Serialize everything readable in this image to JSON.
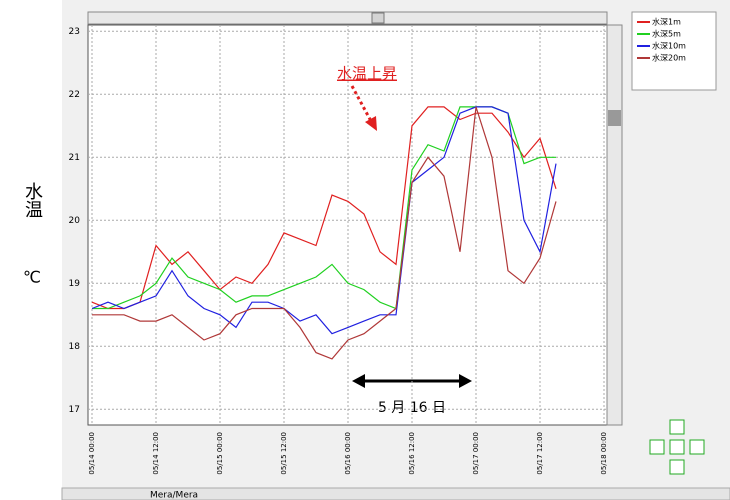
{
  "chart_data": {
    "type": "line",
    "ylabel": "水温",
    "yunit": "℃",
    "annotations": [
      "水温上昇",
      "5 月 16 日"
    ],
    "x": [
      "05/14 00:00",
      "05/14 03:00",
      "05/14 06:00",
      "05/14 09:00",
      "05/14 12:00",
      "05/14 15:00",
      "05/14 18:00",
      "05/14 21:00",
      "05/15 00:00",
      "05/15 03:00",
      "05/15 06:00",
      "05/15 09:00",
      "05/15 12:00",
      "05/15 15:00",
      "05/15 18:00",
      "05/15 21:00",
      "05/16 00:00",
      "05/16 03:00",
      "05/16 06:00",
      "05/16 09:00",
      "05/16 12:00",
      "05/16 15:00",
      "05/16 18:00",
      "05/16 21:00",
      "05/17 00:00",
      "05/17 03:00",
      "05/17 06:00",
      "05/17 09:00",
      "05/17 12:00",
      "05/17 15:00"
    ],
    "series": [
      {
        "name": "水深1m",
        "color": "#e02020",
        "values": [
          18.7,
          18.6,
          18.6,
          18.7,
          19.6,
          19.3,
          19.5,
          19.2,
          18.9,
          19.1,
          19.0,
          19.3,
          19.8,
          19.7,
          19.6,
          20.4,
          20.3,
          20.1,
          19.5,
          19.3,
          21.5,
          21.8,
          21.8,
          21.6,
          21.7,
          21.7,
          21.4,
          21.0,
          21.3,
          20.5
        ]
      },
      {
        "name": "水深5m",
        "color": "#20d020",
        "values": [
          18.6,
          18.6,
          18.7,
          18.8,
          19.0,
          19.4,
          19.1,
          19.0,
          18.9,
          18.7,
          18.8,
          18.8,
          18.9,
          19.0,
          19.1,
          19.3,
          19.0,
          18.9,
          18.7,
          18.6,
          20.8,
          21.2,
          21.1,
          21.8,
          21.8,
          21.8,
          21.7,
          20.9,
          21.0,
          21.0
        ]
      },
      {
        "name": "水深10m",
        "color": "#2020e0",
        "values": [
          18.6,
          18.7,
          18.6,
          18.7,
          18.8,
          19.2,
          18.8,
          18.6,
          18.5,
          18.3,
          18.7,
          18.7,
          18.6,
          18.4,
          18.5,
          18.2,
          18.3,
          18.4,
          18.5,
          18.5,
          20.6,
          20.8,
          21.0,
          21.7,
          21.8,
          21.8,
          21.7,
          20.0,
          19.5,
          20.9
        ]
      },
      {
        "name": "水深20m",
        "color": "#b03838",
        "values": [
          18.5,
          18.5,
          18.5,
          18.4,
          18.4,
          18.5,
          18.3,
          18.1,
          18.2,
          18.5,
          18.6,
          18.6,
          18.6,
          18.3,
          17.9,
          17.8,
          18.1,
          18.2,
          18.4,
          18.6,
          20.6,
          21.0,
          20.7,
          19.5,
          21.8,
          21.0,
          19.2,
          19.0,
          19.4,
          20.3
        ]
      }
    ],
    "xlim": [
      "05/14 00:00",
      "05/18 00:00"
    ],
    "xticks": [
      "05/14 00:00",
      "05/14 12:00",
      "05/15 00:00",
      "05/15 12:00",
      "05/16 00:00",
      "05/16 12:00",
      "05/17 00:00",
      "05/17 12:00",
      "05/18 00:00"
    ],
    "ylim": [
      16.75,
      23.1
    ],
    "yticks": [
      17,
      18,
      19,
      20,
      21,
      22,
      23
    ],
    "grid": true,
    "legend": "upper right"
  },
  "status_bar": "Mera/Mera"
}
